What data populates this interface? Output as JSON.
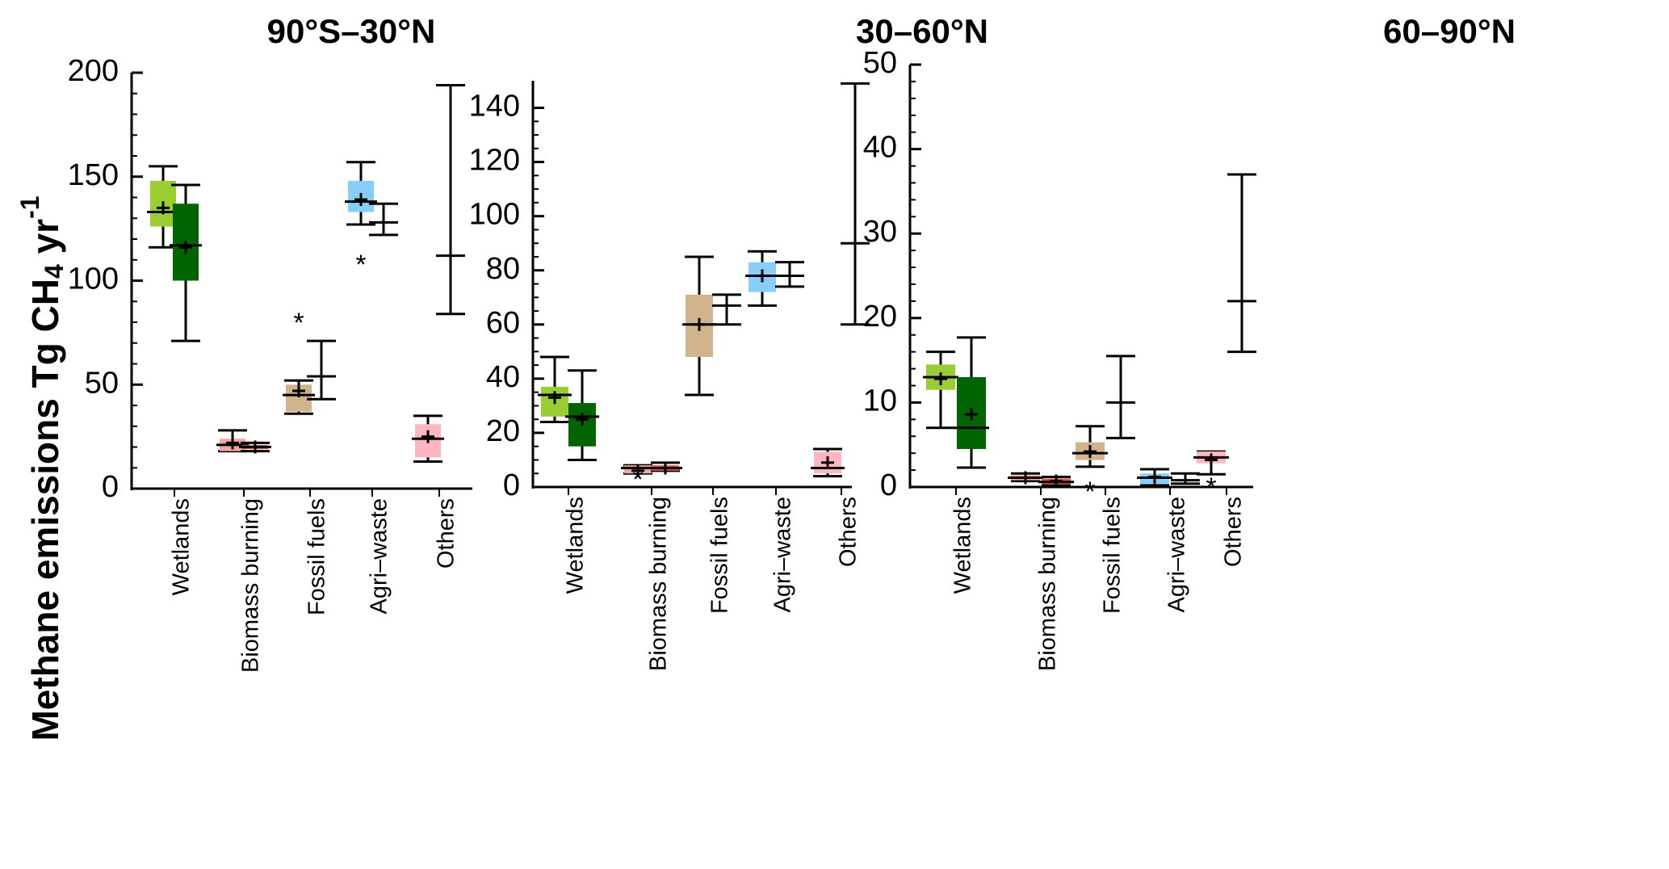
{
  "figure": {
    "ylabel": {
      "main": "Methane emissions Tg CH",
      "sub": "4",
      "tail": " yr",
      "sup": "-1"
    },
    "colors": {
      "Wetlands": [
        "#9ACD32",
        "#006400"
      ],
      "Biomass burning": [
        "#F4A7A0",
        "#D9534F"
      ],
      "Fossil fuels": [
        "#D2B48C",
        "#D2B48C"
      ],
      "Agri–waste": [
        "#87CEFA",
        "#87CEFA"
      ],
      "Others": [
        "#FFB6C1",
        "#FFB6C1"
      ]
    }
  },
  "chart_data": [
    {
      "type": "box",
      "title": "90°S–30°N",
      "categories": [
        "Wetlands",
        "Biomass burning",
        "Fossil fuels",
        "Agri–waste",
        "Others"
      ],
      "ylim": [
        0,
        200
      ],
      "yticks": [
        0,
        50,
        100,
        150,
        200
      ],
      "elements": [
        {
          "cat": 0,
          "shade": 0,
          "kind": "box",
          "q1": 126,
          "median": 133,
          "q3": 148,
          "mean": 135,
          "wlo": 116,
          "whi": 155
        },
        {
          "cat": 0,
          "shade": 1,
          "kind": "box",
          "q1": 100,
          "median": 117,
          "q3": 137,
          "mean": 116,
          "wlo": 71,
          "whi": 146
        },
        {
          "cat": 1,
          "shade": 0,
          "kind": "box",
          "q1": 18,
          "median": 21,
          "q3": 24,
          "mean": 22,
          "wlo": 18,
          "whi": 28
        },
        {
          "cat": 1,
          "shade": 1,
          "kind": "box",
          "q1": 19,
          "median": 20,
          "q3": 21,
          "mean": 20,
          "wlo": 18,
          "whi": 22
        },
        {
          "cat": 2,
          "shade": 0,
          "kind": "box",
          "q1": 37,
          "median": 45,
          "q3": 50,
          "mean": 47,
          "wlo": 36,
          "whi": 52,
          "outliers": [
            80
          ]
        },
        {
          "cat": 2,
          "shade": 1,
          "kind": "range",
          "wlo": 43,
          "median": 54,
          "whi": 71
        },
        {
          "cat": 3,
          "shade": 0,
          "kind": "box",
          "q1": 133,
          "median": 138,
          "q3": 148,
          "mean": 139,
          "wlo": 127,
          "whi": 157,
          "outliers": [
            108
          ]
        },
        {
          "cat": 3,
          "shade": 1,
          "kind": "range",
          "wlo": 122,
          "median": 128,
          "whi": 137
        },
        {
          "cat": 4,
          "shade": 0,
          "kind": "box",
          "q1": 15,
          "median": 24,
          "q3": 31,
          "mean": 25,
          "wlo": 13,
          "whi": 35
        },
        {
          "cat": 4,
          "shade": 1,
          "kind": "range",
          "wlo": 84,
          "median": 112,
          "whi": 194
        }
      ]
    },
    {
      "type": "box",
      "title": "30–60°N",
      "categories": [
        "Wetlands",
        "Biomass burning",
        "Fossil fuels",
        "Agri–waste",
        "Others"
      ],
      "ylim": [
        0,
        150
      ],
      "yticks": [
        0,
        20,
        40,
        60,
        80,
        100,
        120,
        140
      ],
      "elements": [
        {
          "cat": 0,
          "shade": 0,
          "kind": "box",
          "q1": 26,
          "median": 34,
          "q3": 37,
          "mean": 33,
          "wlo": 24,
          "whi": 48
        },
        {
          "cat": 0,
          "shade": 1,
          "kind": "box",
          "q1": 15,
          "median": 26,
          "q3": 31,
          "mean": 25,
          "wlo": 10,
          "whi": 43
        },
        {
          "cat": 1,
          "shade": 0,
          "kind": "box",
          "q1": 5,
          "median": 7,
          "q3": 8,
          "mean": 6,
          "wlo": 5,
          "whi": 8,
          "outliers": [
            3
          ]
        },
        {
          "cat": 1,
          "shade": 1,
          "kind": "box",
          "q1": 6,
          "median": 7,
          "q3": 8,
          "mean": 7,
          "wlo": 6,
          "whi": 9
        },
        {
          "cat": 2,
          "shade": 0,
          "kind": "box",
          "q1": 48,
          "median": 60,
          "q3": 71,
          "mean": 60,
          "wlo": 34,
          "whi": 85
        },
        {
          "cat": 2,
          "shade": 1,
          "kind": "range",
          "wlo": 60,
          "median": 67,
          "whi": 71
        },
        {
          "cat": 3,
          "shade": 0,
          "kind": "box",
          "q1": 72,
          "median": 78,
          "q3": 83,
          "mean": 78,
          "wlo": 67,
          "whi": 87
        },
        {
          "cat": 3,
          "shade": 1,
          "kind": "range",
          "wlo": 74,
          "median": 78,
          "whi": 83
        },
        {
          "cat": 4,
          "shade": 0,
          "kind": "box",
          "q1": 5,
          "median": 7,
          "q3": 13,
          "mean": 9,
          "wlo": 4,
          "whi": 14
        },
        {
          "cat": 4,
          "shade": 1,
          "kind": "range",
          "wlo": 60,
          "median": 90,
          "whi": 149
        }
      ]
    },
    {
      "type": "box",
      "title": "60–90°N",
      "categories": [
        "Wetlands",
        "Biomass burning",
        "Fossil fuels",
        "Agri–waste",
        "Others"
      ],
      "ylim": [
        0,
        50
      ],
      "yticks": [
        0,
        10,
        20,
        30,
        40,
        50
      ],
      "elements": [
        {
          "cat": 0,
          "shade": 0,
          "kind": "box",
          "q1": 11.5,
          "median": 13,
          "q3": 14.5,
          "mean": 12.8,
          "wlo": 7,
          "whi": 16
        },
        {
          "cat": 0,
          "shade": 1,
          "kind": "box",
          "q1": 4.5,
          "median": 7,
          "q3": 13,
          "mean": 8.6,
          "wlo": 2.3,
          "whi": 17.7
        },
        {
          "cat": 1,
          "shade": 0,
          "kind": "box",
          "q1": 0.8,
          "median": 1.1,
          "q3": 1.4,
          "mean": 1.1,
          "wlo": 0.7,
          "whi": 1.6
        },
        {
          "cat": 1,
          "shade": 1,
          "kind": "box",
          "q1": 0.3,
          "median": 0.6,
          "q3": 1.0,
          "mean": 0.7,
          "wlo": 0.2,
          "whi": 1.2
        },
        {
          "cat": 2,
          "shade": 0,
          "kind": "box",
          "q1": 3.2,
          "median": 4,
          "q3": 5.3,
          "mean": 4.2,
          "wlo": 2.4,
          "whi": 7.2,
          "outliers": [
            -0.5
          ]
        },
        {
          "cat": 2,
          "shade": 1,
          "kind": "range",
          "wlo": 5.8,
          "median": 10,
          "whi": 15.5
        },
        {
          "cat": 3,
          "shade": 0,
          "kind": "box",
          "q1": 0.4,
          "median": 1.1,
          "q3": 1.6,
          "mean": 1.2,
          "wlo": 0.2,
          "whi": 2.1
        },
        {
          "cat": 3,
          "shade": 1,
          "kind": "range",
          "wlo": 0.4,
          "median": 0.8,
          "whi": 1.6
        },
        {
          "cat": 4,
          "shade": 0,
          "kind": "box",
          "q1": 2.8,
          "median": 3.5,
          "q3": 4.2,
          "mean": 3.2,
          "wlo": 1.5,
          "whi": 4.2,
          "outliers": [
            0
          ]
        },
        {
          "cat": 4,
          "shade": 1,
          "kind": "range",
          "wlo": 16,
          "median": 22,
          "whi": 37
        }
      ]
    }
  ]
}
